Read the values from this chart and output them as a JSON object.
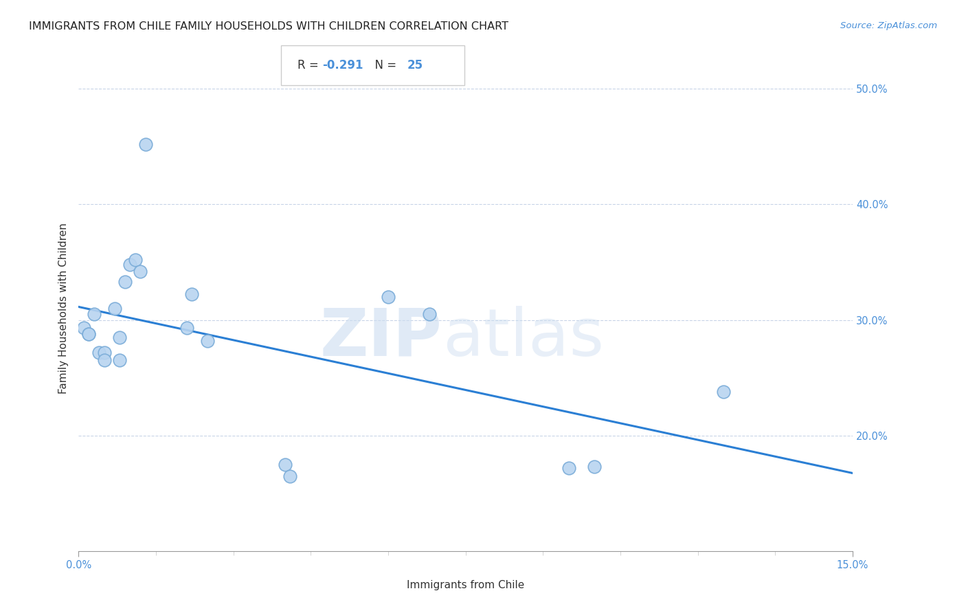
{
  "title": "IMMIGRANTS FROM CHILE FAMILY HOUSEHOLDS WITH CHILDREN CORRELATION CHART",
  "source": "Source: ZipAtlas.com",
  "xlabel": "Immigrants from Chile",
  "ylabel": "Family Households with Children",
  "R": -0.291,
  "N": 25,
  "watermark_zip": "ZIP",
  "watermark_atlas": "atlas",
  "xlim": [
    0.0,
    0.15
  ],
  "ylim": [
    0.1,
    0.52
  ],
  "x_ticks": [
    0.0,
    0.15
  ],
  "x_tick_labels": [
    "0.0%",
    "15.0%"
  ],
  "y_ticks": [
    0.2,
    0.3,
    0.4,
    0.5
  ],
  "y_tick_labels": [
    "20.0%",
    "30.0%",
    "40.0%",
    "50.0%"
  ],
  "scatter_color": "#b8d4f0",
  "scatter_edgecolor": "#7aacd8",
  "line_color": "#2b7fd4",
  "scatter_x": [
    0.001,
    0.002,
    0.002,
    0.003,
    0.004,
    0.005,
    0.005,
    0.007,
    0.008,
    0.008,
    0.009,
    0.01,
    0.011,
    0.012,
    0.013,
    0.021,
    0.022,
    0.025,
    0.04,
    0.041,
    0.06,
    0.068,
    0.095,
    0.1,
    0.125
  ],
  "scatter_y": [
    0.293,
    0.288,
    0.288,
    0.305,
    0.272,
    0.272,
    0.265,
    0.31,
    0.265,
    0.285,
    0.333,
    0.348,
    0.352,
    0.342,
    0.452,
    0.293,
    0.322,
    0.282,
    0.175,
    0.165,
    0.32,
    0.305,
    0.172,
    0.173,
    0.238
  ],
  "title_fontsize": 11.5,
  "source_fontsize": 9.5,
  "axis_label_fontsize": 11,
  "tick_fontsize": 10.5,
  "background_color": "#ffffff",
  "grid_color": "#c8d4e8",
  "annotation_box_color": "#ffffff",
  "annotation_border_color": "#bbbbbb"
}
